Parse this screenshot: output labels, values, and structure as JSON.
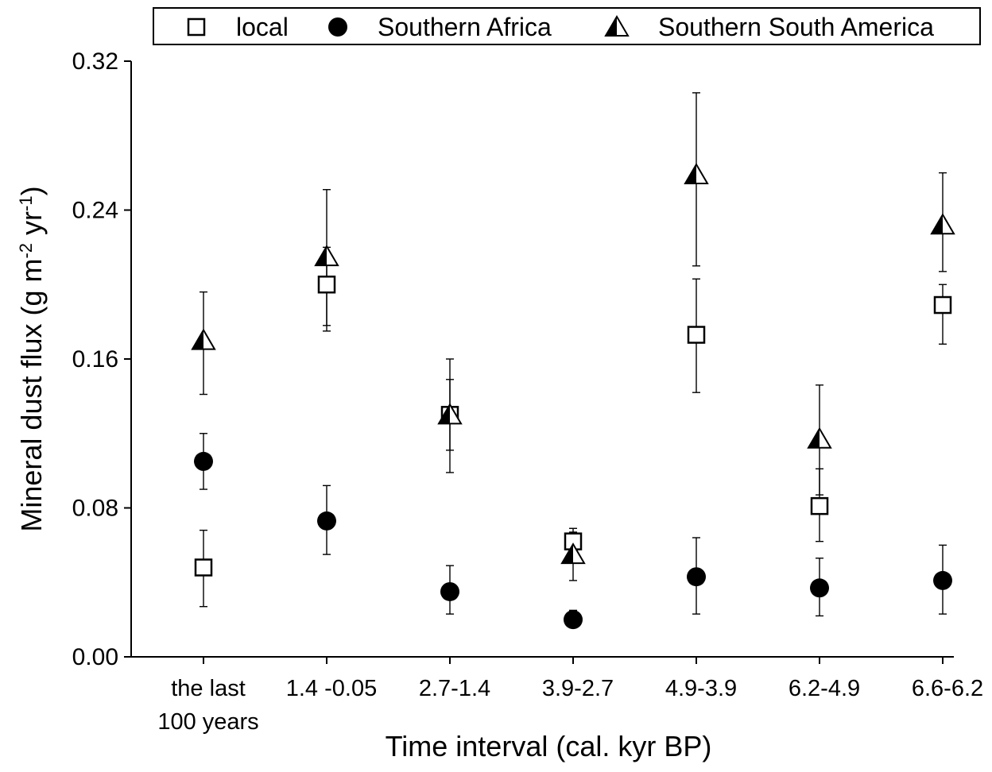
{
  "chart_data": {
    "type": "scatter",
    "title": "",
    "xlabel": "Time interval (cal. kyr BP)",
    "ylabel": {
      "text": "Mineral dust flux (g m",
      "sup1": "-2",
      "mid": " yr",
      "sup2": "-1",
      "end": ")"
    },
    "categories": [
      [
        "the last",
        "100 years"
      ],
      [
        "1.4 -0.05"
      ],
      [
        "2.7-1.4"
      ],
      [
        "3.9-2.7"
      ],
      [
        "4.9-3.9"
      ],
      [
        "6.2-4.9"
      ],
      [
        "6.6-6.2"
      ]
    ],
    "ylim": [
      0,
      0.32
    ],
    "yticks": [
      0.0,
      0.08,
      0.16,
      0.24,
      0.32
    ],
    "ytick_labels": [
      "0.00",
      "0.08",
      "0.16",
      "0.24",
      "0.32"
    ],
    "grid": false,
    "legend_position": "top",
    "series": [
      {
        "name": "local",
        "marker": "open-square",
        "values": [
          0.048,
          0.2,
          0.13,
          0.062,
          0.173,
          0.081,
          0.189
        ],
        "err_low": [
          0.027,
          0.178,
          0.111,
          0.054,
          0.142,
          0.062,
          0.168
        ],
        "err_high": [
          0.068,
          0.22,
          0.149,
          0.069,
          0.203,
          0.101,
          0.2
        ]
      },
      {
        "name": "Southern Africa",
        "marker": "filled-circle",
        "values": [
          0.105,
          0.073,
          0.035,
          0.02,
          0.043,
          0.037,
          0.041
        ],
        "err_low": [
          0.09,
          0.055,
          0.023,
          0.017,
          0.023,
          0.022,
          0.023
        ],
        "err_high": [
          0.12,
          0.092,
          0.049,
          0.025,
          0.064,
          0.053,
          0.06
        ]
      },
      {
        "name": "Southern South America",
        "marker": "half-filled-triangle",
        "values": [
          0.17,
          0.215,
          0.13,
          0.055,
          0.259,
          0.117,
          0.232
        ],
        "err_low": [
          0.141,
          0.175,
          0.099,
          0.041,
          0.21,
          0.087,
          0.207
        ],
        "err_high": [
          0.196,
          0.251,
          0.16,
          0.067,
          0.303,
          0.146,
          0.26
        ]
      }
    ]
  }
}
